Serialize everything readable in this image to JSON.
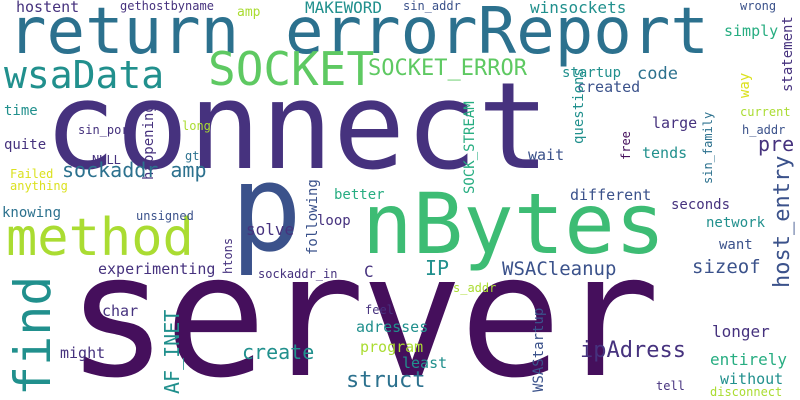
{
  "colors": {
    "dark_purple": "#450f5c",
    "indigo": "#46327e",
    "slate_blue": "#3b528b",
    "steel_blue": "#2c718e",
    "teal": "#21908d",
    "sea_green": "#27ad81",
    "green": "#5ec962",
    "lime": "#aadc32",
    "yellow": "#dbe11f"
  },
  "words": [
    "connect",
    "server",
    "nBytes",
    "p",
    "return",
    "errorReport",
    "find",
    "method",
    "SOCKET",
    "wsaData",
    "SOCKET_ERROR",
    "hostent",
    "gethostbyname",
    "MAKEWORD",
    "sin_addr",
    "winsockets",
    "wrong",
    "amp",
    "created",
    "code",
    "startup",
    "simply",
    "statement",
    "way",
    "time",
    "current",
    "h_addr",
    "sin_port",
    "long",
    "quite",
    "NULL",
    "gt",
    "happening",
    "pre",
    "large",
    "tends",
    "wait",
    "questions",
    "SOCK_STREAM",
    "free",
    "sin_family",
    "host_entry",
    "Failed",
    "anything",
    "sockaddr amp",
    "better",
    "different",
    "seconds",
    "knowing",
    "unsigned",
    "network",
    "following",
    "loop",
    "solve",
    "want",
    "htons",
    "experimenting",
    "IP",
    "WSACleanup",
    "sizeof",
    "C",
    "sockaddr_in",
    "s_addr",
    "char",
    "feel",
    "adresses",
    "AF_INET",
    "create",
    "program",
    "might",
    "least",
    "ipAdress",
    "longer",
    "struct",
    "WSAStartup",
    "entirely",
    "without",
    "tell",
    "disconnect"
  ]
}
